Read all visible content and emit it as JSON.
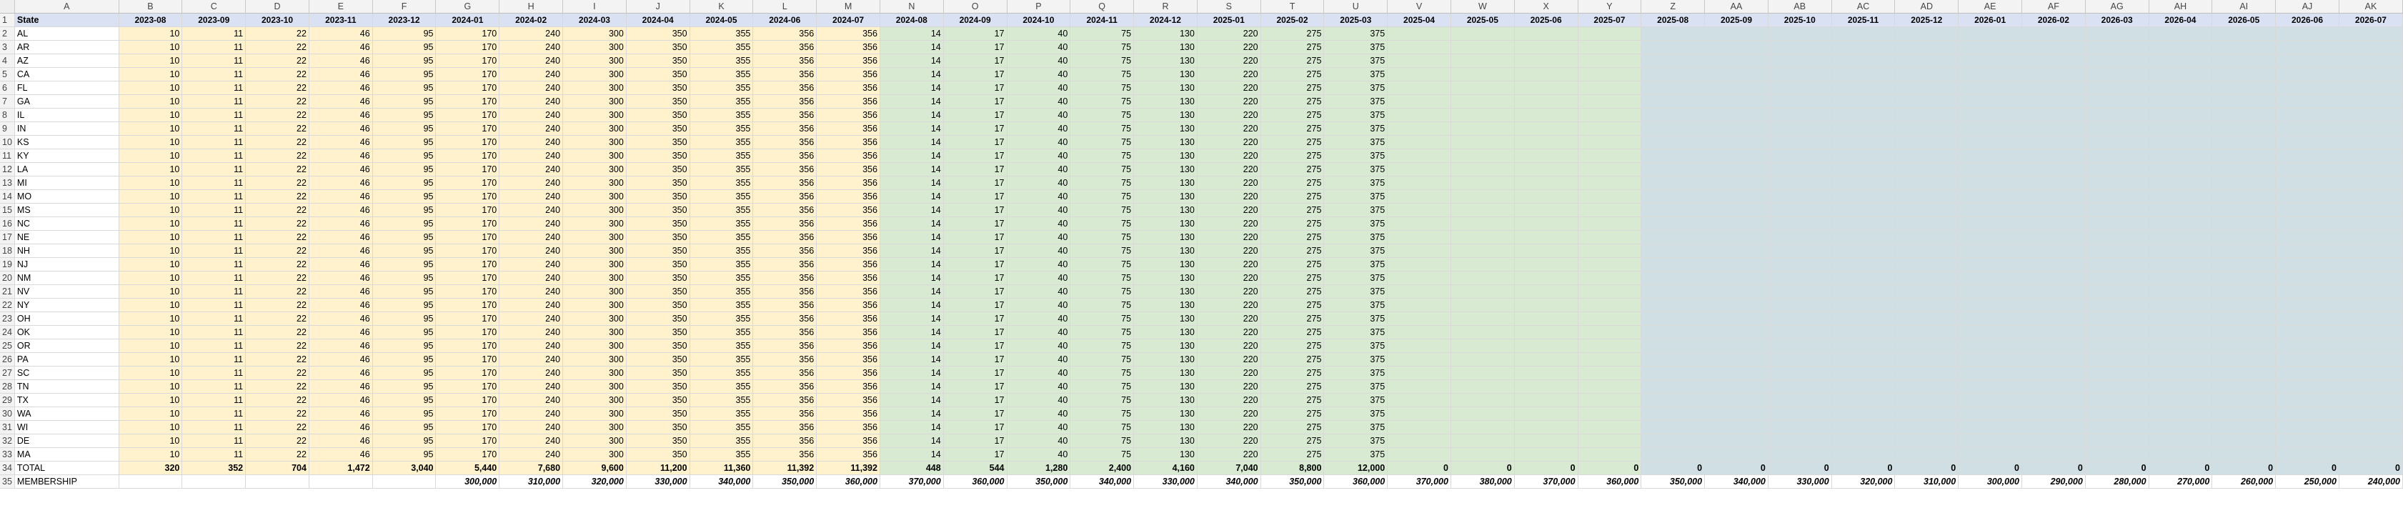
{
  "sheet": {
    "column_letters": [
      "A",
      "B",
      "C",
      "D",
      "E",
      "F",
      "G",
      "H",
      "I",
      "J",
      "K",
      "L",
      "M",
      "N",
      "O",
      "P",
      "Q",
      "R",
      "S",
      "T",
      "U",
      "V",
      "W",
      "X",
      "Y",
      "Z",
      "AA",
      "AB",
      "AC",
      "AD",
      "AE",
      "AF",
      "AG",
      "AH",
      "AI",
      "AJ",
      "AK"
    ],
    "state_header": "State",
    "periods": [
      "2023-08",
      "2023-09",
      "2023-10",
      "2023-11",
      "2023-12",
      "2024-01",
      "2024-02",
      "2024-03",
      "2024-04",
      "2024-05",
      "2024-06",
      "2024-07",
      "2024-08",
      "2024-09",
      "2024-10",
      "2024-11",
      "2024-12",
      "2025-01",
      "2025-02",
      "2025-03",
      "2025-04",
      "2025-05",
      "2025-06",
      "2025-07",
      "2025-08",
      "2025-09",
      "2025-10",
      "2025-11",
      "2025-12",
      "2026-01",
      "2026-02",
      "2026-03",
      "2026-04",
      "2026-05",
      "2026-06",
      "2026-07"
    ],
    "period_fills": [
      "y",
      "y",
      "y",
      "y",
      "y",
      "y",
      "y",
      "y",
      "y",
      "y",
      "y",
      "y",
      "g",
      "g",
      "g",
      "g",
      "g",
      "g",
      "g",
      "g",
      "g",
      "g",
      "g",
      "g",
      "b",
      "b",
      "b",
      "b",
      "b",
      "b",
      "b",
      "b",
      "b",
      "b",
      "b",
      "b"
    ],
    "states": [
      "AL",
      "AR",
      "AZ",
      "CA",
      "FL",
      "GA",
      "IL",
      "IN",
      "KS",
      "KY",
      "LA",
      "MI",
      "MO",
      "MS",
      "NC",
      "NE",
      "NH",
      "NJ",
      "NM",
      "NV",
      "NY",
      "OH",
      "OK",
      "OR",
      "PA",
      "SC",
      "TN",
      "TX",
      "WA",
      "WI",
      "DE",
      "MA"
    ],
    "state_row_values": [
      "10",
      "11",
      "22",
      "46",
      "95",
      "170",
      "240",
      "300",
      "350",
      "355",
      "356",
      "356",
      "14",
      "17",
      "40",
      "75",
      "130",
      "220",
      "275",
      "375",
      "",
      "",
      "",
      "",
      "",
      "",
      "",
      "",
      "",
      "",
      "",
      "",
      "",
      "",
      "",
      ""
    ],
    "total_label": "TOTAL",
    "total_values": [
      "320",
      "352",
      "704",
      "1,472",
      "3,040",
      "5,440",
      "7,680",
      "9,600",
      "11,200",
      "11,360",
      "11,392",
      "11,392",
      "448",
      "544",
      "1,280",
      "2,400",
      "4,160",
      "7,040",
      "8,800",
      "12,000",
      "0",
      "0",
      "0",
      "0",
      "0",
      "0",
      "0",
      "0",
      "0",
      "0",
      "0",
      "0",
      "0",
      "0",
      "0",
      "0"
    ],
    "membership_label": "MEMBERSHIP",
    "membership_values": [
      "",
      "",
      "",
      "",
      "",
      "300,000",
      "310,000",
      "320,000",
      "330,000",
      "340,000",
      "350,000",
      "360,000",
      "370,000",
      "360,000",
      "350,000",
      "340,000",
      "330,000",
      "340,000",
      "350,000",
      "360,000",
      "370,000",
      "380,000",
      "370,000",
      "360,000",
      "350,000",
      "340,000",
      "330,000",
      "320,000",
      "310,000",
      "300,000",
      "290,000",
      "280,000",
      "270,000",
      "260,000",
      "250,000",
      "240,000"
    ]
  }
}
